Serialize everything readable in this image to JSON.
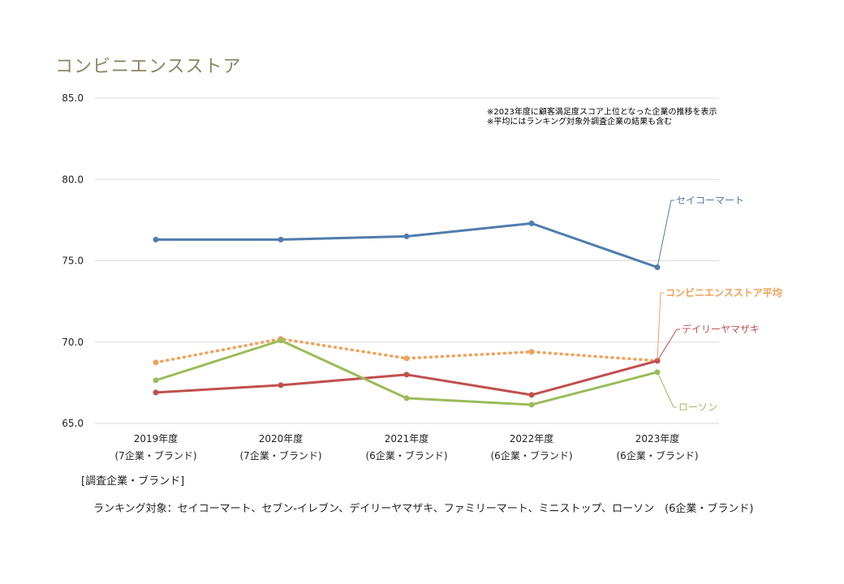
{
  "chart_data": {
    "type": "line",
    "title": "コンビニエンスストア",
    "categories": [
      "2019年度",
      "2020年度",
      "2021年度",
      "2022年度",
      "2023年度"
    ],
    "category_sublabels": [
      "(7企業・ブランド)",
      "(7企業・ブランド)",
      "(6企業・ブランド)",
      "(6企業・ブランド)",
      "(6企業・ブランド)"
    ],
    "ylim": [
      65,
      85
    ],
    "yticks": [
      "85.0",
      "80.0",
      "75.0",
      "70.0",
      "65.0"
    ],
    "ytick_values": [
      85,
      80,
      75,
      70,
      65
    ],
    "grid": true,
    "series": [
      {
        "name": "セイコーマート",
        "values": [
          76.3,
          76.3,
          76.5,
          77.3,
          74.6
        ],
        "color": "#4f7cad",
        "style": "solid",
        "bold_label": false
      },
      {
        "name": "コンビニエンスストア平均",
        "values": [
          68.75,
          70.2,
          69.0,
          69.4,
          68.85
        ],
        "color": "#f0a159",
        "style": "dotted",
        "bold_label": true
      },
      {
        "name": "デイリーヤマザキ",
        "values": [
          66.9,
          67.35,
          68.0,
          66.75,
          68.85
        ],
        "color": "#c0504d",
        "style": "solid",
        "bold_label": false
      },
      {
        "name": "ローソン",
        "values": [
          67.65,
          70.1,
          66.55,
          66.15,
          68.15
        ],
        "color": "#9bbb59",
        "style": "solid",
        "bold_label": false
      }
    ],
    "annotations": [
      "※2023年度に顧客満足度スコア上位となった企業の推移を表示",
      "※平均にはランキング対象外調査企業の結果も含む"
    ]
  },
  "footer": {
    "category_label": "[調査企業・ブランド]",
    "ranking_text": "ランキング対象：セイコーマート、セブン-イレブン、デイリーヤマザキ、ファミリーマート、ミニストップ、ローソン　(6企業・ブランド)"
  },
  "colors": {
    "title": "#8c8463",
    "grid": "#d9d9d9",
    "axis_text": "#222222"
  }
}
